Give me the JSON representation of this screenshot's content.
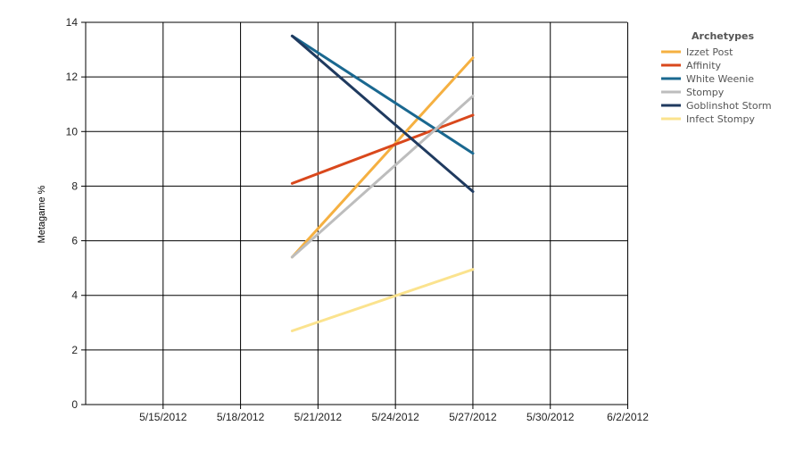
{
  "chart_data": {
    "type": "line",
    "ylabel": "Metagame %",
    "xlabel": "",
    "ylim": [
      0,
      14
    ],
    "y_ticks": [
      "0",
      "2",
      "4",
      "6",
      "8",
      "10",
      "12",
      "14"
    ],
    "x_ticks": [
      "5/15/2012",
      "5/18/2012",
      "5/21/2012",
      "5/24/2012",
      "5/27/2012",
      "5/30/2012",
      "6/2/2012"
    ],
    "x": [
      "5/20/2012",
      "5/27/2012"
    ],
    "grid": true,
    "legend": {
      "title": "Archetypes",
      "placement": "right"
    },
    "series": [
      {
        "name": "Izzet Post",
        "color": "#f5b041",
        "values": [
          5.4,
          12.7
        ]
      },
      {
        "name": "Affinity",
        "color": "#d9481c",
        "values": [
          8.1,
          10.6
        ]
      },
      {
        "name": "White Weenie",
        "color": "#1a6890",
        "values": [
          13.5,
          9.2
        ]
      },
      {
        "name": "Stompy",
        "color": "#bdbdbd",
        "values": [
          5.4,
          11.3
        ]
      },
      {
        "name": "Goblinshot Storm",
        "color": "#1f3a5f",
        "values": [
          13.5,
          7.8
        ]
      },
      {
        "name": "Infect Stompy",
        "color": "#fbe38e",
        "values": [
          2.7,
          4.95
        ]
      }
    ]
  }
}
